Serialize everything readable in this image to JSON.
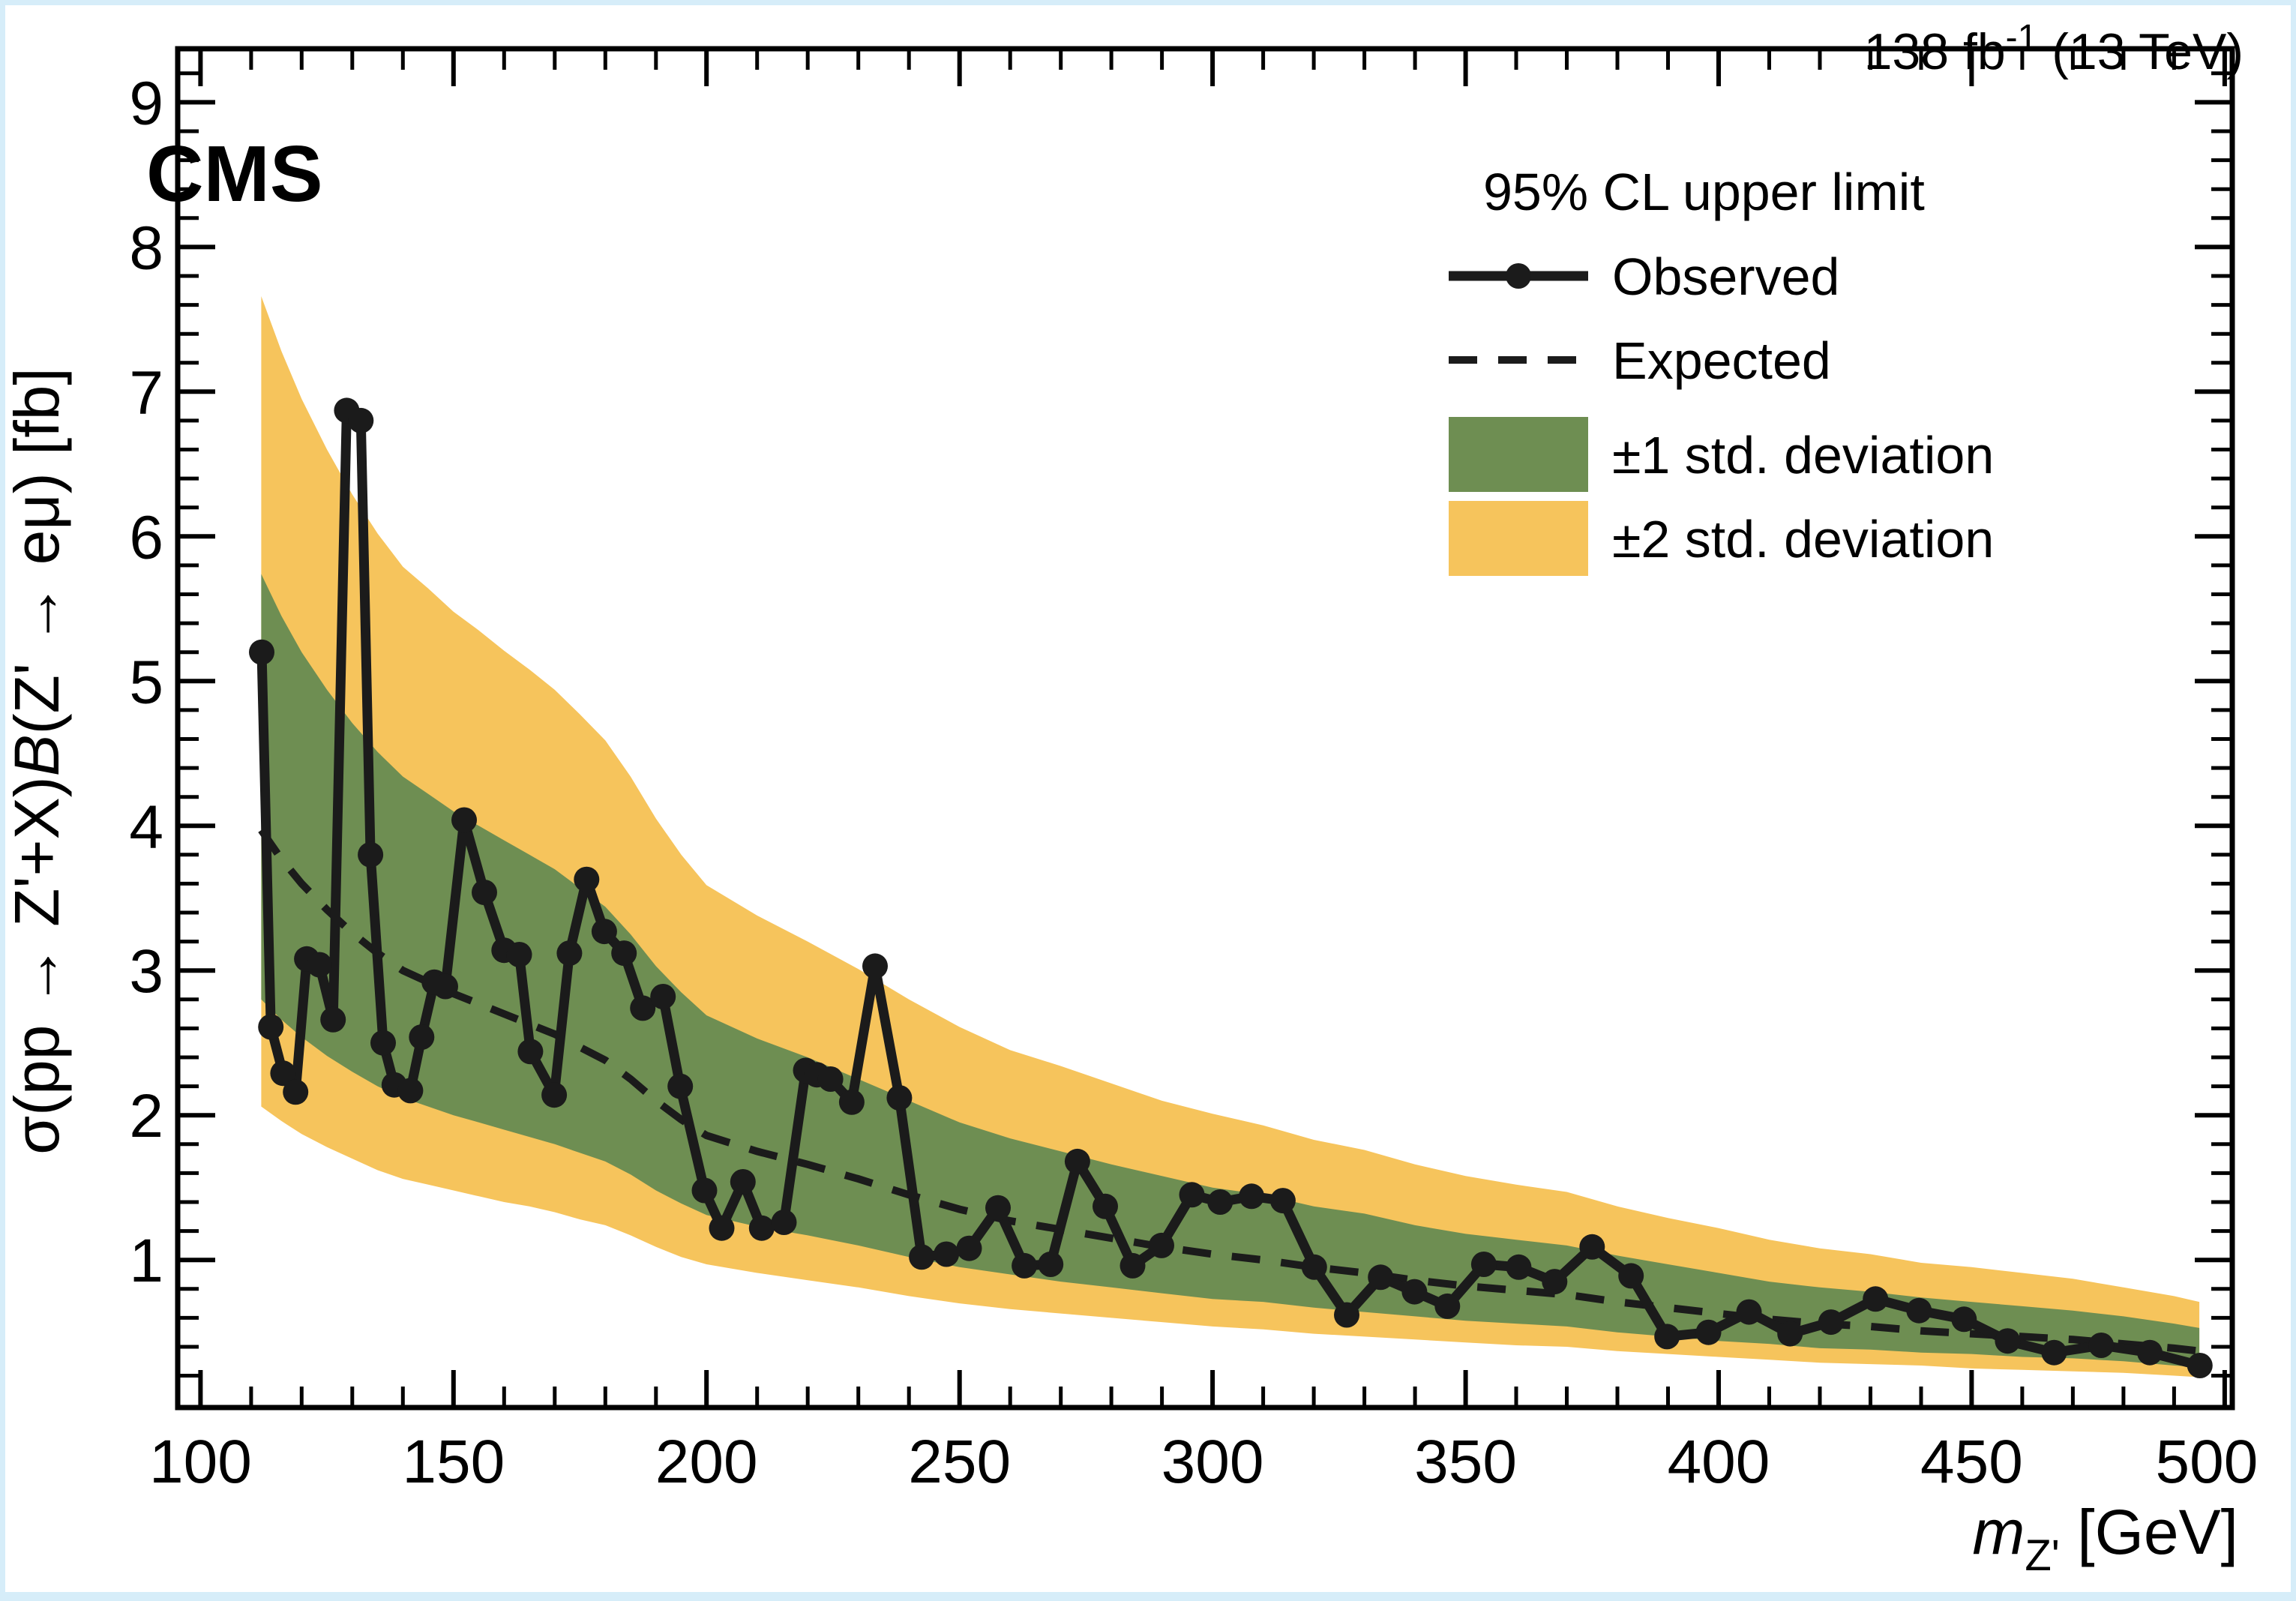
{
  "page": {
    "outer_background": "#d6edf9",
    "plot_background": "#ffffff"
  },
  "header": {
    "experiment_label": "CMS",
    "lumi_prefix": "138 fb",
    "lumi_superscript": "-1",
    "lumi_suffix": " (13 TeV)"
  },
  "chart_data": {
    "type": "line",
    "title": "",
    "xlabel_main": "m",
    "xlabel_sub": "Z'",
    "xlabel_unit": " [GeV]",
    "ylabel_pre": "σ(pp → Z'+X)",
    "ylabel_italic": "B",
    "ylabel_post": "(Z' → eμ) [fb]",
    "xlim": [
      95.5,
      501.5
    ],
    "ylim": [
      -0.02,
      9.37
    ],
    "x_major_ticks": [
      100,
      150,
      200,
      250,
      300,
      350,
      400,
      450,
      500
    ],
    "x_minor_step": 10,
    "y_major_ticks": [
      1,
      2,
      3,
      4,
      5,
      6,
      7,
      8,
      9
    ],
    "y_minor_step": 0.2,
    "grid": false,
    "legend": {
      "position": "top-right-inside",
      "header": "95% CL upper limit",
      "entries": [
        {
          "label": "Observed",
          "type": "line-marker"
        },
        {
          "label": "Expected",
          "type": "dashed-line"
        },
        {
          "label": "±1 std. deviation",
          "type": "band",
          "color": "#6e8e52"
        },
        {
          "label": "±2 std. deviation",
          "type": "band",
          "color": "#f6c45c"
        }
      ]
    },
    "colors": {
      "observed": "#1b1b1b",
      "expected": "#1b1b1b",
      "band_1sigma": "#6e8e52",
      "band_2sigma": "#f6c45c",
      "frame": "#000000"
    },
    "observed": {
      "m": [
        112.1,
        113.9,
        116.3,
        118.8,
        121.0,
        123.5,
        126.2,
        128.9,
        131.7,
        133.6,
        136.1,
        138.3,
        141.5,
        143.7,
        146.2,
        148.4,
        152.1,
        156.1,
        160.0,
        163.0,
        165.2,
        169.9,
        172.9,
        176.3,
        179.8,
        183.7,
        187.4,
        191.4,
        194.8,
        199.6,
        203.0,
        207.2,
        210.9,
        215.3,
        219.6,
        221.8,
        224.5,
        228.7,
        233.3,
        238.1,
        242.5,
        247.4,
        251.9,
        257.6,
        262.8,
        268.0,
        273.3,
        278.8,
        284.2,
        289.9,
        295.9,
        301.5,
        307.7,
        313.9,
        320.1,
        326.5,
        333.2,
        339.9,
        346.4,
        353.6,
        360.5,
        367.6,
        375.0,
        382.7,
        389.8,
        398.0,
        406.0,
        414.1,
        422.2,
        431.0,
        439.6,
        448.5,
        457.1,
        466.3,
        475.6,
        485.2,
        495.1
      ],
      "v": [
        5.2,
        2.61,
        2.29,
        2.16,
        3.08,
        3.04,
        2.66,
        6.87,
        6.8,
        3.8,
        2.5,
        2.21,
        2.17,
        2.54,
        2.92,
        2.89,
        4.04,
        3.54,
        3.14,
        3.11,
        2.44,
        2.14,
        3.12,
        3.63,
        3.27,
        3.12,
        2.74,
        2.82,
        2.2,
        1.48,
        1.22,
        1.54,
        1.22,
        1.26,
        2.31,
        2.28,
        2.25,
        2.09,
        3.03,
        2.12,
        1.02,
        1.04,
        1.08,
        1.36,
        0.96,
        0.97,
        1.68,
        1.37,
        0.96,
        1.1,
        1.45,
        1.4,
        1.44,
        1.41,
        0.95,
        0.62,
        0.88,
        0.78,
        0.68,
        0.97,
        0.95,
        0.85,
        1.09,
        0.89,
        0.47,
        0.5,
        0.64,
        0.49,
        0.57,
        0.73,
        0.65,
        0.59,
        0.44,
        0.36,
        0.41,
        0.36,
        0.27
      ]
    },
    "expected": {
      "m": [
        112,
        116,
        120,
        125,
        130,
        135,
        140,
        145,
        150,
        155,
        160,
        165,
        170,
        175,
        180,
        185,
        190,
        195,
        200,
        210,
        220,
        230,
        240,
        250,
        260,
        270,
        280,
        290,
        300,
        310,
        320,
        330,
        340,
        350,
        360,
        370,
        380,
        390,
        400,
        410,
        420,
        430,
        440,
        450,
        460,
        470,
        480,
        490,
        495
      ],
      "v": [
        3.97,
        3.77,
        3.6,
        3.42,
        3.26,
        3.12,
        3.0,
        2.92,
        2.84,
        2.77,
        2.7,
        2.63,
        2.56,
        2.47,
        2.38,
        2.25,
        2.1,
        1.97,
        1.86,
        1.75,
        1.66,
        1.56,
        1.45,
        1.35,
        1.27,
        1.21,
        1.15,
        1.09,
        1.04,
        1.0,
        0.95,
        0.91,
        0.86,
        0.82,
        0.79,
        0.76,
        0.71,
        0.67,
        0.63,
        0.59,
        0.56,
        0.54,
        0.51,
        0.49,
        0.47,
        0.45,
        0.42,
        0.39,
        0.37
      ]
    },
    "bands": {
      "m": [
        112,
        116,
        120,
        125,
        130,
        135,
        140,
        145,
        150,
        155,
        160,
        165,
        170,
        175,
        180,
        185,
        190,
        195,
        200,
        210,
        220,
        230,
        240,
        250,
        260,
        270,
        280,
        290,
        300,
        310,
        320,
        330,
        340,
        350,
        360,
        370,
        380,
        390,
        400,
        410,
        420,
        430,
        440,
        450,
        460,
        470,
        480,
        490,
        495
      ],
      "up2": [
        7.66,
        7.28,
        6.95,
        6.6,
        6.29,
        6.02,
        5.79,
        5.64,
        5.48,
        5.35,
        5.21,
        5.08,
        4.94,
        4.77,
        4.59,
        4.34,
        4.05,
        3.8,
        3.59,
        3.38,
        3.2,
        3.01,
        2.8,
        2.61,
        2.45,
        2.34,
        2.22,
        2.1,
        2.01,
        1.93,
        1.83,
        1.76,
        1.66,
        1.58,
        1.52,
        1.47,
        1.37,
        1.29,
        1.22,
        1.14,
        1.08,
        1.04,
        0.98,
        0.95,
        0.91,
        0.87,
        0.81,
        0.75,
        0.71
      ],
      "up1": [
        5.74,
        5.45,
        5.2,
        4.94,
        4.71,
        4.51,
        4.34,
        4.22,
        4.1,
        4.0,
        3.9,
        3.8,
        3.7,
        3.57,
        3.44,
        3.25,
        3.03,
        2.85,
        2.69,
        2.53,
        2.4,
        2.25,
        2.1,
        1.95,
        1.84,
        1.75,
        1.66,
        1.58,
        1.5,
        1.45,
        1.37,
        1.32,
        1.24,
        1.18,
        1.14,
        1.1,
        1.03,
        0.97,
        0.91,
        0.85,
        0.81,
        0.78,
        0.74,
        0.71,
        0.68,
        0.65,
        0.61,
        0.56,
        0.53
      ],
      "dn1": [
        2.8,
        2.66,
        2.54,
        2.41,
        2.3,
        2.2,
        2.12,
        2.06,
        2.0,
        1.95,
        1.9,
        1.85,
        1.8,
        1.74,
        1.68,
        1.59,
        1.48,
        1.39,
        1.31,
        1.23,
        1.17,
        1.1,
        1.02,
        0.95,
        0.9,
        0.85,
        0.81,
        0.77,
        0.73,
        0.71,
        0.67,
        0.64,
        0.61,
        0.58,
        0.56,
        0.54,
        0.5,
        0.47,
        0.44,
        0.42,
        0.39,
        0.38,
        0.36,
        0.35,
        0.33,
        0.32,
        0.3,
        0.27,
        0.26
      ],
      "dn2": [
        2.06,
        1.96,
        1.87,
        1.78,
        1.7,
        1.62,
        1.56,
        1.52,
        1.48,
        1.44,
        1.4,
        1.37,
        1.33,
        1.28,
        1.24,
        1.17,
        1.09,
        1.02,
        0.97,
        0.91,
        0.86,
        0.81,
        0.75,
        0.7,
        0.66,
        0.63,
        0.6,
        0.57,
        0.54,
        0.52,
        0.49,
        0.47,
        0.45,
        0.43,
        0.41,
        0.4,
        0.37,
        0.35,
        0.33,
        0.31,
        0.29,
        0.28,
        0.27,
        0.25,
        0.24,
        0.23,
        0.22,
        0.2,
        0.19
      ]
    }
  }
}
